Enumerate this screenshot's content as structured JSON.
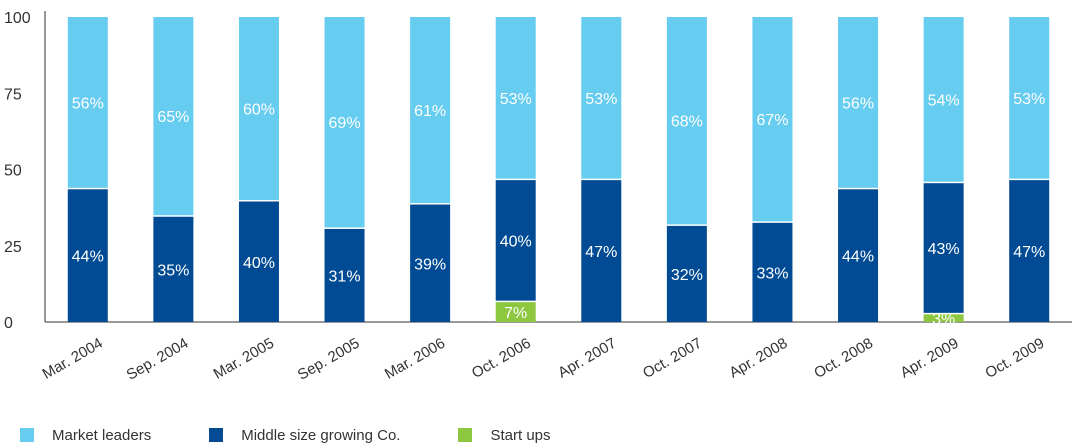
{
  "chart_data": {
    "type": "bar",
    "stacked": true,
    "categories": [
      "Mar. 2004",
      "Sep. 2004",
      "Mar. 2005",
      "Sep. 2005",
      "Mar. 2006",
      "Oct. 2006",
      "Apr. 2007",
      "Oct. 2007",
      "Apr. 2008",
      "Oct. 2008",
      "Apr. 2009",
      "Oct. 2009"
    ],
    "series": [
      {
        "name": "Start ups",
        "color": "#8dc63f",
        "values": [
          0,
          0,
          0,
          0,
          0,
          7,
          0,
          0,
          0,
          0,
          3,
          0
        ],
        "labels": [
          "",
          "",
          "",
          "",
          "",
          "7%",
          "",
          "",
          "",
          "",
          "3%",
          ""
        ]
      },
      {
        "name": "Middle size growing Co.",
        "color": "#004b93",
        "values": [
          44,
          35,
          40,
          31,
          39,
          40,
          47,
          32,
          33,
          44,
          43,
          47
        ],
        "labels": [
          "44%",
          "35%",
          "40%",
          "31%",
          "39%",
          "40%",
          "47%",
          "32%",
          "33%",
          "44%",
          "43%",
          "47%"
        ]
      },
      {
        "name": "Market leaders",
        "color": "#66ccf0",
        "values": [
          56,
          65,
          60,
          69,
          61,
          53,
          53,
          68,
          67,
          56,
          54,
          53
        ],
        "labels": [
          "56%",
          "65%",
          "60%",
          "69%",
          "61%",
          "53%",
          "53%",
          "68%",
          "67%",
          "56%",
          "54%",
          "53%"
        ]
      }
    ],
    "yticks": [
      "0",
      "25",
      "50",
      "75",
      "100"
    ],
    "ylim": [
      0,
      100
    ],
    "grid": false,
    "legend_position": "bottom-left",
    "legend_order": [
      "Market leaders",
      "Middle size growing Co.",
      "Start ups"
    ]
  }
}
